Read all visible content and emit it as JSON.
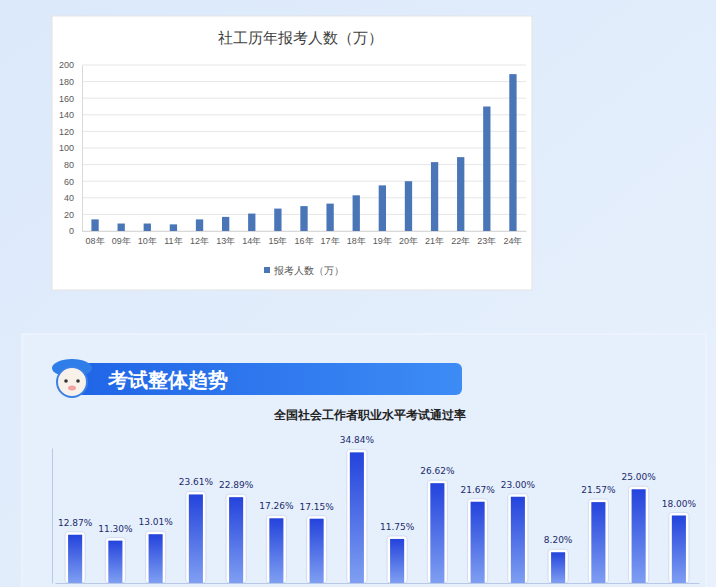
{
  "chart_data": [
    {
      "type": "bar",
      "title": "社工历年报考人数（万）",
      "categories": [
        "08年",
        "09年",
        "10年",
        "11年",
        "12年",
        "13年",
        "14年",
        "15年",
        "16年",
        "17年",
        "18年",
        "19年",
        "20年",
        "21年",
        "22年",
        "23年",
        "24年"
      ],
      "series": [
        {
          "name": "报考人数（万）",
          "color": "#4a76b8",
          "values": [
            14,
            9,
            9,
            8,
            14,
            17,
            21,
            27,
            30,
            33,
            43,
            55,
            60,
            83,
            89,
            150,
            189
          ]
        }
      ],
      "ylim": [
        0,
        200
      ],
      "yticks": [
        0,
        20,
        40,
        60,
        80,
        100,
        120,
        140,
        160,
        180,
        200
      ],
      "grid": true,
      "legend": "bottom"
    },
    {
      "type": "bar",
      "title": "全国社会工作者职业水平考试通过率",
      "annotations": [
        "考试整体趋势"
      ],
      "categories": [
        null,
        null,
        null,
        null,
        null,
        null,
        null,
        null,
        null,
        null,
        null,
        null,
        null,
        null,
        null,
        null
      ],
      "values": [
        12.87,
        11.3,
        13.01,
        23.61,
        22.89,
        17.26,
        17.15,
        34.84,
        11.75,
        26.62,
        21.67,
        23.0,
        8.2,
        21.57,
        25.0,
        18.0
      ],
      "value_labels": [
        "12.87%",
        "11.30%",
        "13.01%",
        "23.61%",
        "22.89%",
        "17.26%",
        "17.15%",
        "34.84%",
        "11.75%",
        "26.62%",
        "21.67%",
        "23.00%",
        "8.20%",
        "21.57%",
        "25.00%",
        "18.00%"
      ],
      "color": "#2443dc",
      "ylim": [
        0,
        36
      ],
      "data_labels": true,
      "tick_labels": false
    }
  ]
}
